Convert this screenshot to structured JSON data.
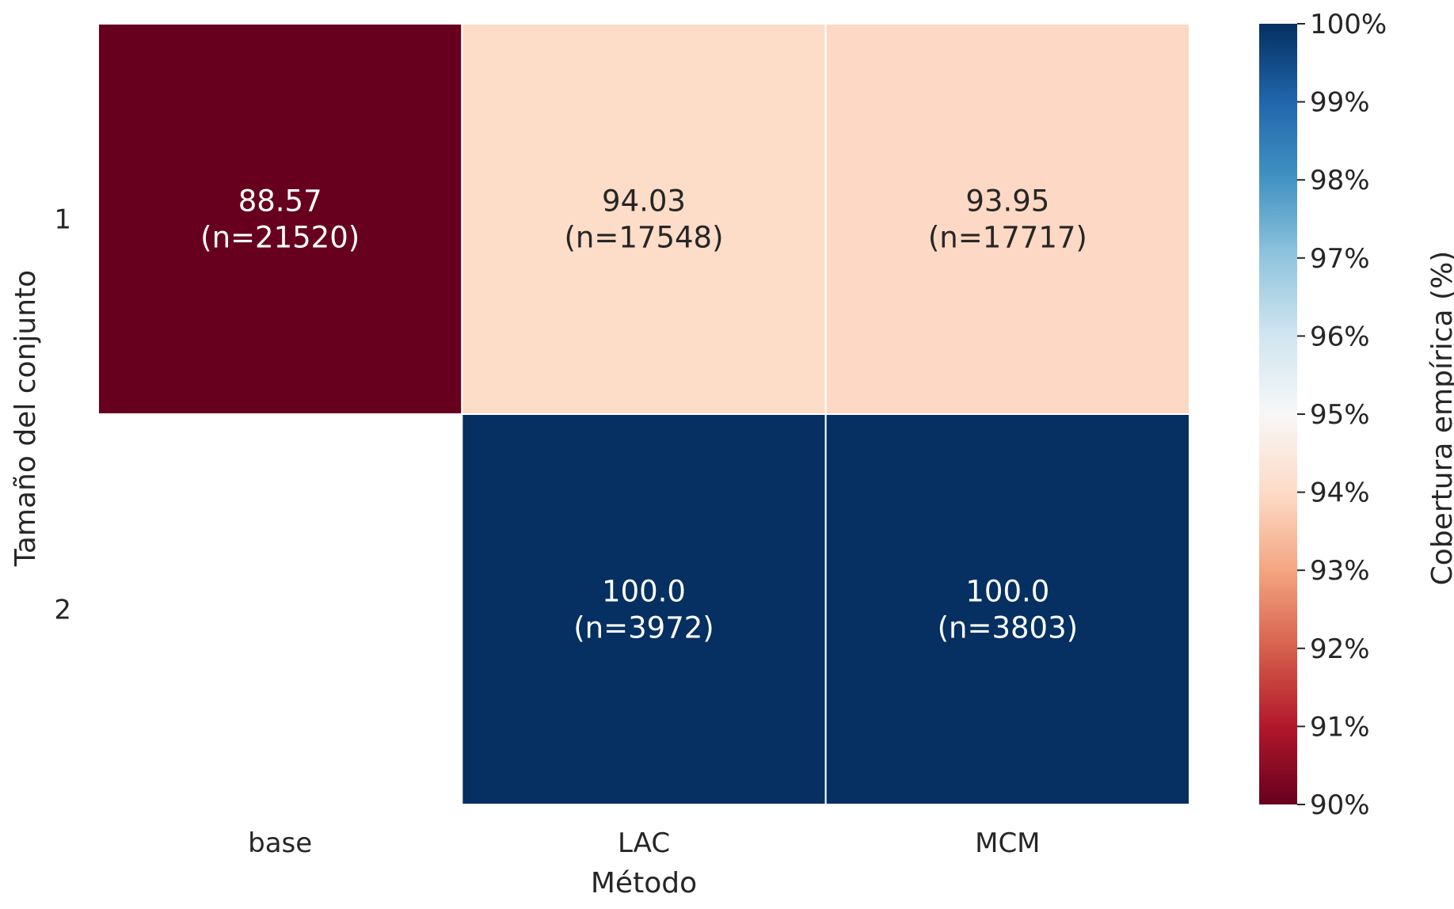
{
  "chart_data": {
    "type": "heatmap",
    "title": "",
    "xlabel": "Método",
    "ylabel": "Tamaño del conjunto",
    "x_categories": [
      "base",
      "LAC",
      "MCM"
    ],
    "y_categories": [
      "1",
      "2"
    ],
    "cells": [
      [
        {
          "value": 88.57,
          "value_label": "88.57",
          "count_label": "(n=21520)"
        },
        {
          "value": 94.03,
          "value_label": "94.03",
          "count_label": "(n=17548)"
        },
        {
          "value": 93.95,
          "value_label": "93.95",
          "count_label": "(n=17717)"
        }
      ],
      [
        null,
        {
          "value": 100.0,
          "value_label": "100.0",
          "count_label": "(n=3972)"
        },
        {
          "value": 100.0,
          "value_label": "100.0",
          "count_label": "(n=3803)"
        }
      ]
    ],
    "colorbar": {
      "label": "Cobertura empírica (%)",
      "range": [
        90,
        100
      ],
      "colormap": "RdBu",
      "ticks": [
        90,
        91,
        92,
        93,
        94,
        95,
        96,
        97,
        98,
        99,
        100
      ],
      "tick_labels": [
        "90%",
        "91%",
        "92%",
        "93%",
        "94%",
        "95%",
        "96%",
        "97%",
        "98%",
        "99%",
        "100%"
      ]
    },
    "grid": false
  }
}
